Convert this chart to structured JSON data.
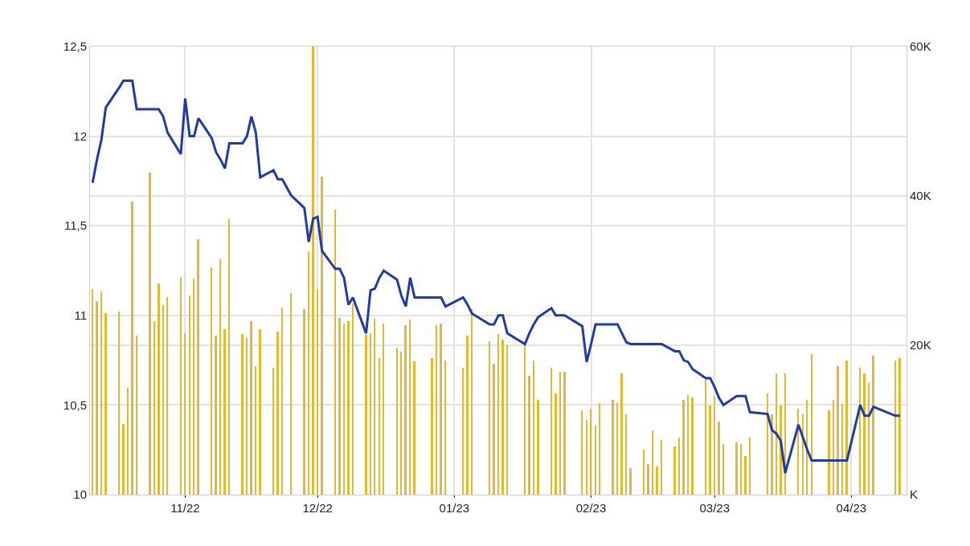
{
  "chart_data": {
    "type": "line",
    "x": [
      "2022-10-11",
      "2022-10-12",
      "2022-10-13",
      "2022-10-14",
      "2022-10-17",
      "2022-10-18",
      "2022-10-19",
      "2022-10-20",
      "2022-10-21",
      "2022-10-24",
      "2022-10-25",
      "2022-10-26",
      "2022-10-27",
      "2022-10-28",
      "2022-10-31",
      "2022-11-01",
      "2022-11-02",
      "2022-11-03",
      "2022-11-04",
      "2022-11-07",
      "2022-11-08",
      "2022-11-09",
      "2022-11-10",
      "2022-11-11",
      "2022-11-14",
      "2022-11-15",
      "2022-11-16",
      "2022-11-17",
      "2022-11-18",
      "2022-11-21",
      "2022-11-22",
      "2022-11-23",
      "2022-11-25",
      "2022-11-28",
      "2022-11-29",
      "2022-11-30",
      "2022-12-01",
      "2022-12-02",
      "2022-12-05",
      "2022-12-06",
      "2022-12-07",
      "2022-12-08",
      "2022-12-09",
      "2022-12-12",
      "2022-12-13",
      "2022-12-14",
      "2022-12-15",
      "2022-12-16",
      "2022-12-19",
      "2022-12-20",
      "2022-12-21",
      "2022-12-22",
      "2022-12-23",
      "2022-12-27",
      "2022-12-28",
      "2022-12-29",
      "2022-12-30",
      "2023-01-03",
      "2023-01-04",
      "2023-01-05",
      "2023-01-09",
      "2023-01-10",
      "2023-01-11",
      "2023-01-12",
      "2023-01-13",
      "2023-01-17",
      "2023-01-18",
      "2023-01-19",
      "2023-01-20",
      "2023-01-23",
      "2023-01-24",
      "2023-01-25",
      "2023-01-26",
      "2023-01-30",
      "2023-01-31",
      "2023-02-01",
      "2023-02-02",
      "2023-02-03",
      "2023-02-06",
      "2023-02-07",
      "2023-02-08",
      "2023-02-09",
      "2023-02-10",
      "2023-02-13",
      "2023-02-14",
      "2023-02-15",
      "2023-02-16",
      "2023-02-17",
      "2023-02-20",
      "2023-02-21",
      "2023-02-22",
      "2023-02-23",
      "2023-02-24",
      "2023-02-27",
      "2023-02-28",
      "2023-03-01",
      "2023-03-02",
      "2023-03-03",
      "2023-03-06",
      "2023-03-07",
      "2023-03-08",
      "2023-03-09",
      "2023-03-13",
      "2023-03-14",
      "2023-03-15",
      "2023-03-16",
      "2023-03-17",
      "2023-03-20",
      "2023-03-21",
      "2023-03-22",
      "2023-03-23",
      "2023-03-27",
      "2023-03-28",
      "2023-03-29",
      "2023-03-30",
      "2023-03-31",
      "2023-04-03",
      "2023-04-04",
      "2023-04-05",
      "2023-04-06",
      "2023-04-11",
      "2023-04-12"
    ],
    "series": [
      {
        "type": "bar",
        "axis": "y2",
        "color": "#e2b935",
        "values": [
          27500,
          25900,
          27200,
          24300,
          24500,
          9500,
          14300,
          39300,
          21300,
          43100,
          23200,
          28300,
          25400,
          26500,
          29100,
          21600,
          26700,
          28900,
          34200,
          30400,
          21300,
          31500,
          22100,
          36900,
          21500,
          21000,
          23200,
          17200,
          22100,
          17000,
          21800,
          25100,
          27000,
          24800,
          32600,
          60000,
          27500,
          42600,
          38200,
          23700,
          22900,
          23200,
          25600,
          21400,
          21600,
          23500,
          18300,
          22900,
          19700,
          19100,
          22700,
          23400,
          17800,
          18300,
          22700,
          22900,
          18000,
          17000,
          21300,
          24800,
          20500,
          17500,
          21500,
          20700,
          20000,
          20100,
          15900,
          18000,
          12700,
          17000,
          13500,
          16400,
          16400,
          11300,
          10000,
          11500,
          9200,
          12300,
          12700,
          12300,
          16200,
          10700,
          3500,
          6000,
          4100,
          8600,
          3800,
          7300,
          6500,
          7600,
          12700,
          13300,
          13000,
          15400,
          11900,
          13100,
          9800,
          6800,
          7000,
          6800,
          5200,
          7600,
          13500,
          10700,
          16200,
          11900,
          16200,
          11500,
          10700,
          12700,
          18800,
          11300,
          12700,
          17200,
          12200,
          18000,
          17000,
          16200,
          15000,
          18600,
          18000,
          18300
        ]
      },
      {
        "color": "#1f3c9e",
        "values": [
          11.74,
          11.87,
          11.98,
          12.16,
          12.27,
          12.31,
          12.31,
          12.31,
          12.15,
          12.15,
          12.15,
          12.15,
          12.11,
          12.02,
          11.9,
          12.21,
          12.0,
          12.0,
          12.1,
          11.99,
          11.91,
          11.87,
          11.82,
          11.96,
          11.96,
          12.0,
          12.11,
          12.02,
          11.77,
          11.81,
          11.76,
          11.76,
          11.67,
          11.6,
          11.41,
          11.54,
          11.55,
          11.36,
          11.26,
          11.26,
          11.21,
          11.06,
          11.1,
          10.9,
          11.14,
          11.15,
          11.21,
          11.25,
          11.2,
          11.11,
          11.05,
          11.21,
          11.1,
          11.1,
          11.1,
          11.1,
          11.05,
          11.1,
          11.06,
          11.01,
          10.95,
          10.95,
          11.0,
          11.0,
          10.9,
          10.84,
          10.9,
          10.95,
          10.99,
          11.04,
          11.0,
          11.0,
          11.0,
          10.94,
          10.74,
          10.84,
          10.95,
          10.95,
          10.95,
          10.95,
          10.9,
          10.85,
          10.84,
          10.84,
          10.84,
          10.84,
          10.84,
          10.84,
          10.8,
          10.8,
          10.75,
          10.74,
          10.7,
          10.65,
          10.65,
          10.6,
          10.54,
          10.5,
          10.55,
          10.55,
          10.55,
          10.46,
          10.45,
          10.36,
          10.34,
          10.3,
          10.12,
          10.39,
          10.32,
          10.25,
          10.19,
          10.19,
          10.19,
          10.19,
          10.19,
          10.19,
          10.5,
          10.44,
          10.44,
          10.49,
          10.44,
          10.44
        ]
      }
    ],
    "xlim": [
      "2022-10-10T10:00",
      "2023-04-13T12:00"
    ],
    "xticks": [
      {
        "value": "2022-11-01",
        "label": "11/22"
      },
      {
        "value": "2022-12-01",
        "label": "12/22"
      },
      {
        "value": "2023-01-01",
        "label": "01/23"
      },
      {
        "value": "2023-02-01",
        "label": "02/23"
      },
      {
        "value": "2023-03-01",
        "label": "03/23"
      },
      {
        "value": "2023-04-01",
        "label": "04/23"
      }
    ],
    "ylim": [
      10,
      12.5
    ],
    "yticks": [
      10,
      {
        "value": 10.5,
        "label": "10,5"
      },
      11,
      {
        "value": 11.5,
        "label": "11,5"
      },
      12,
      {
        "value": 12.5,
        "label": "12,5"
      }
    ],
    "y2lim": [
      0,
      60000
    ],
    "y2ticks": [
      {
        "value": 0,
        "label": "K"
      },
      {
        "value": 20000,
        "label": "20K"
      },
      {
        "value": 40000,
        "label": "40K"
      },
      {
        "value": 60000,
        "label": "60K"
      }
    ],
    "grid": true,
    "line_style": "solid",
    "marker": "none"
  }
}
